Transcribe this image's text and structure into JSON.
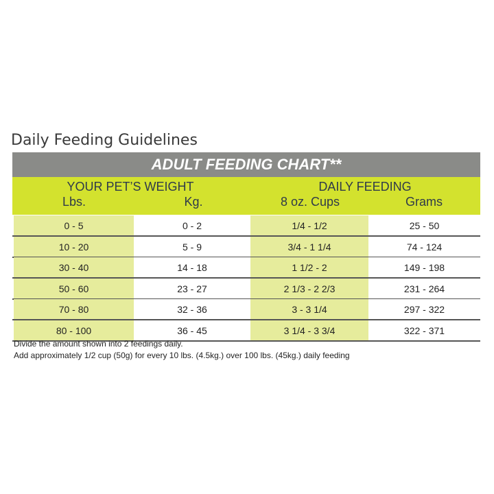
{
  "header": {
    "title": "Daily Feeding Guidelines"
  },
  "table": {
    "banner": "ADULT FEEDING CHART**",
    "group_headers": [
      "YOUR PET’S WEIGHT",
      "DAILY FEEDING"
    ],
    "column_headers": [
      "Lbs.",
      "Kg.",
      "8 oz. Cups",
      "Grams"
    ],
    "rows": [
      [
        "0 - 5",
        "0 - 2",
        "1/4 - 1/2",
        "25 - 50"
      ],
      [
        "10 - 20",
        "5 - 9",
        "3/4 - 1 1/4",
        "74 - 124"
      ],
      [
        "30 - 40",
        "14 - 18",
        "1 1/2 - 2",
        "149 - 198"
      ],
      [
        "50 - 60",
        "23 - 27",
        "2 1/3 - 2 2/3",
        "231 - 264"
      ],
      [
        "70 - 80",
        "32 - 36",
        "3 - 3 1/4",
        "297 - 322"
      ],
      [
        "80 - 100",
        "36 - 45",
        "3 1/4 - 3 3/4",
        "322 - 371"
      ]
    ]
  },
  "footnotes": [
    "Divide the amount shown into 2 feedings daily.",
    "Add approximately 1/2 cup (50g) for every 10 lbs. (4.5kg.) over 100 lbs. (45kg.) daily feeding"
  ]
}
